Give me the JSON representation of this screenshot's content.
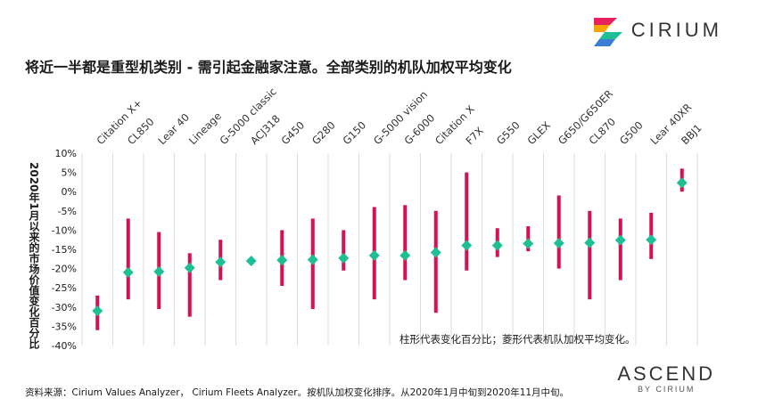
{
  "brand": {
    "name": "CIRIUM"
  },
  "title": "将近一半都是重型机类别 - 需引起金融家注意。全部类别的机队加权平均变化",
  "note": "柱形代表变化百分比；菱形代表机队加权平均变化。",
  "source": "资料来源：Cirium Values Analyzer， Cirium Fleets Analyzer。按机队加权变化排序。从2020年1月中旬到2020年11月中旬。",
  "footer_brand": {
    "main": "ASCEND",
    "sub": "BY CIRIUM"
  },
  "colors": {
    "range_bar": "#d6114f",
    "diamond": "#1fbf95",
    "grid": "#dddddd",
    "text": "#1a1a1a"
  },
  "chart_data": {
    "type": "range-bar",
    "ylabel": "2020年1月以来的市场价值变化百分比",
    "ylim": [
      -40,
      10
    ],
    "yticks": [
      10,
      5,
      0,
      -5,
      -10,
      -15,
      -20,
      -25,
      -30,
      -35,
      -40
    ],
    "ytick_labels": [
      "10%",
      "5%",
      "0%",
      "-5%",
      "-10%",
      "-15%",
      "-20%",
      "-25%",
      "-30%",
      "-35%",
      "-40%"
    ],
    "grid": "vertical",
    "categories": [
      "Citation X+",
      "CL850",
      "Lear 40",
      "Lineage",
      "G-5000 classic",
      "ACJ318",
      "G450",
      "G280",
      "G150",
      "G-5000 vision",
      "G-6000",
      "Citation X",
      "F7X",
      "G550",
      "GLEX",
      "G650/G650ER",
      "CL870",
      "G500",
      "Lear 40XR",
      "BBJ1"
    ],
    "range_min": [
      -36,
      -28,
      -30.5,
      -32.5,
      -23,
      -18.5,
      -24.5,
      -30.5,
      -20.5,
      -28,
      -23,
      -31.5,
      -20.5,
      -17,
      -15.5,
      -20,
      -28,
      -23,
      -17.5,
      0
    ],
    "range_max": [
      -27,
      -7,
      -10.5,
      -16,
      -12.5,
      -17.5,
      -10,
      -7,
      -10,
      -4,
      -3.5,
      -5,
      5,
      -9.5,
      -9,
      -1,
      -5,
      -7,
      -5.5,
      6
    ],
    "weighted_avg": [
      -31,
      -21,
      -20.8,
      -19.8,
      -18.3,
      -18,
      -17.8,
      -17.7,
      -17.3,
      -16.6,
      -16.6,
      -15.8,
      -14,
      -14,
      -13.5,
      -13.4,
      -13.3,
      -12.6,
      -12.5,
      2.3
    ]
  }
}
